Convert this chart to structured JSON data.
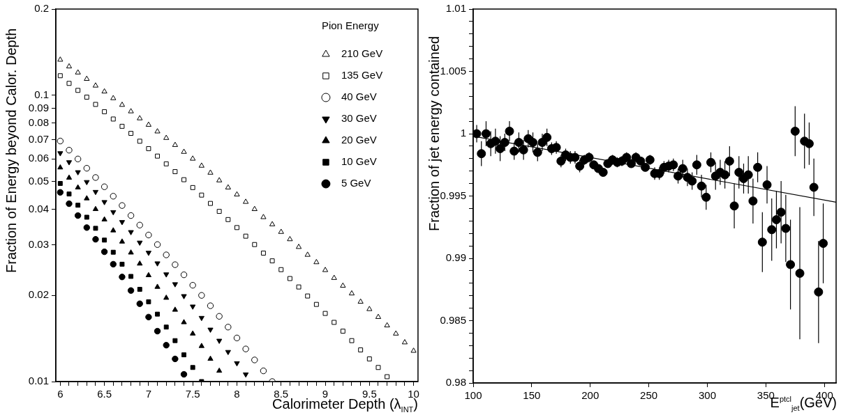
{
  "chart_data": [
    {
      "type": "scatter",
      "xlabel": "Calorimeter Depth (λ$_{INT}$)",
      "ylabel": "Fraction of Energy beyond Calor. Depth",
      "legend_title": "Pion Energy",
      "legend": "top right",
      "log": "y",
      "xlim": [
        5.95,
        10.05
      ],
      "ylim": [
        0.01,
        0.2
      ],
      "xticks": [
        6,
        {
          "value": 6.1,
          "label": null
        },
        {
          "value": 6.2,
          "label": null
        },
        {
          "value": 6.3,
          "label": null
        },
        {
          "value": 6.4,
          "label": null
        },
        6.5,
        {
          "value": 6.6,
          "label": null
        },
        {
          "value": 6.7,
          "label": null
        },
        {
          "value": 6.8,
          "label": null
        },
        {
          "value": 6.9,
          "label": null
        },
        7,
        {
          "value": 7.1,
          "label": null
        },
        {
          "value": 7.2,
          "label": null
        },
        {
          "value": 7.3,
          "label": null
        },
        {
          "value": 7.4,
          "label": null
        },
        7.5,
        {
          "value": 7.6,
          "label": null
        },
        {
          "value": 7.7,
          "label": null
        },
        {
          "value": 7.8,
          "label": null
        },
        {
          "value": 7.9,
          "label": null
        },
        8,
        {
          "value": 8.1,
          "label": null
        },
        {
          "value": 8.2,
          "label": null
        },
        {
          "value": 8.3,
          "label": null
        },
        {
          "value": 8.4,
          "label": null
        },
        8.5,
        {
          "value": 8.6,
          "label": null
        },
        {
          "value": 8.7,
          "label": null
        },
        {
          "value": 8.8,
          "label": null
        },
        {
          "value": 8.9,
          "label": null
        },
        9,
        {
          "value": 9.1,
          "label": null
        },
        {
          "value": 9.2,
          "label": null
        },
        {
          "value": 9.3,
          "label": null
        },
        {
          "value": 9.4,
          "label": null
        },
        9.5,
        {
          "value": 9.6,
          "label": null
        },
        {
          "value": 9.7,
          "label": null
        },
        {
          "value": 9.8,
          "label": null
        },
        {
          "value": 9.9,
          "label": null
        },
        10
      ],
      "yticks": [
        0.01,
        0.02,
        0.03,
        0.04,
        0.05,
        0.06,
        0.07,
        0.08,
        0.09,
        0.1,
        0.2
      ],
      "series": [
        {
          "name": "210 GeV",
          "color": "#000000",
          "marker": "triangle-open",
          "x": [
            6,
            6.1,
            6.2,
            6.3,
            6.4,
            6.5,
            6.6,
            6.7,
            6.8,
            6.9,
            7,
            7.1,
            7.2,
            7.3,
            7.4,
            7.5,
            7.6,
            7.7,
            7.8,
            7.9,
            8,
            8.1,
            8.2,
            8.3,
            8.4,
            8.5,
            8.6,
            8.7,
            8.8,
            8.9,
            9,
            9.1,
            9.2,
            9.3,
            9.4,
            9.5,
            9.6,
            9.7,
            9.8,
            9.9,
            10
          ],
          "values": [
            0.133,
            0.126,
            0.12,
            0.114,
            0.108,
            0.103,
            0.0976,
            0.0925,
            0.0878,
            0.083,
            0.0788,
            0.0747,
            0.0709,
            0.067,
            0.0634,
            0.06,
            0.0567,
            0.0536,
            0.0504,
            0.0476,
            0.045,
            0.0424,
            0.04,
            0.0375,
            0.0354,
            0.0333,
            0.0314,
            0.0295,
            0.0277,
            0.0261,
            0.0245,
            0.023,
            0.0216,
            0.0203,
            0.019,
            0.0179,
            0.0168,
            0.0157,
            0.0147,
            0.0137,
            0.0128
          ]
        },
        {
          "name": "135 GeV",
          "color": "#000000",
          "marker": "square-open",
          "x": [
            6,
            6.1,
            6.2,
            6.3,
            6.4,
            6.5,
            6.6,
            6.7,
            6.8,
            6.9,
            7,
            7.1,
            7.2,
            7.3,
            7.4,
            7.5,
            7.6,
            7.7,
            7.8,
            7.9,
            8,
            8.1,
            8.2,
            8.3,
            8.4,
            8.5,
            8.6,
            8.7,
            8.8,
            8.9,
            9,
            9.1,
            9.2,
            9.3,
            9.4,
            9.5,
            9.6,
            9.7
          ],
          "values": [
            0.117,
            0.11,
            0.104,
            0.0985,
            0.0929,
            0.0876,
            0.0826,
            0.0779,
            0.0736,
            0.0691,
            0.0651,
            0.0613,
            0.0576,
            0.0541,
            0.0507,
            0.0476,
            0.0448,
            0.0419,
            0.0393,
            0.0368,
            0.0345,
            0.0322,
            0.0301,
            0.0281,
            0.0264,
            0.0246,
            0.0229,
            0.0214,
            0.0199,
            0.0186,
            0.0173,
            0.0161,
            0.015,
            0.0139,
            0.0129,
            0.012,
            0.0112,
            0.0104
          ]
        },
        {
          "name": "40 GeV",
          "color": "#000000",
          "marker": "circle-open",
          "x": [
            6,
            6.1,
            6.2,
            6.3,
            6.4,
            6.5,
            6.6,
            6.7,
            6.8,
            6.9,
            7,
            7.1,
            7.2,
            7.3,
            7.4,
            7.5,
            7.6,
            7.7,
            7.8,
            7.9,
            8,
            8.1,
            8.2,
            8.3,
            8.4
          ],
          "values": [
            0.0692,
            0.0643,
            0.0599,
            0.0556,
            0.0516,
            0.0479,
            0.0444,
            0.0412,
            0.038,
            0.0352,
            0.0325,
            0.0301,
            0.0277,
            0.0256,
            0.0236,
            0.0217,
            0.02,
            0.0184,
            0.0169,
            0.0155,
            0.0142,
            0.013,
            0.0119,
            0.0109,
            0.01
          ]
        },
        {
          "name": "30 GeV",
          "color": "#000000",
          "marker": "triangle-down",
          "x": [
            6,
            6.1,
            6.2,
            6.3,
            6.4,
            6.5,
            6.6,
            6.7,
            6.8,
            6.9,
            7,
            7.1,
            7.2,
            7.3,
            7.4,
            7.5,
            7.6,
            7.7,
            7.8,
            7.9,
            8,
            8.1
          ],
          "values": [
            0.0628,
            0.0584,
            0.0539,
            0.0498,
            0.046,
            0.0424,
            0.0391,
            0.0361,
            0.0333,
            0.0306,
            0.0282,
            0.0259,
            0.0237,
            0.0219,
            0.0199,
            0.0183,
            0.0167,
            0.0152,
            0.0139,
            0.0127,
            0.0116,
            0.0106
          ]
        },
        {
          "name": "20 GeV",
          "color": "#000000",
          "marker": "triangle",
          "x": [
            6,
            6.1,
            6.2,
            6.3,
            6.4,
            6.5,
            6.6,
            6.7,
            6.8,
            6.9,
            7,
            7.1,
            7.2,
            7.3,
            7.4,
            7.5,
            7.6,
            7.7,
            7.8
          ],
          "values": [
            0.0559,
            0.0515,
            0.0476,
            0.0436,
            0.04,
            0.0368,
            0.0337,
            0.0308,
            0.0282,
            0.0258,
            0.0235,
            0.0214,
            0.0196,
            0.0178,
            0.0161,
            0.0147,
            0.0133,
            0.012,
            0.0109
          ]
        },
        {
          "name": "10 GeV",
          "color": "#000000",
          "marker": "square",
          "x": [
            6,
            6.1,
            6.2,
            6.3,
            6.4,
            6.5,
            6.6,
            6.7,
            6.8,
            6.9,
            7,
            7.1,
            7.2,
            7.3,
            7.4,
            7.5,
            7.6
          ],
          "values": [
            0.0492,
            0.0452,
            0.0413,
            0.0375,
            0.0343,
            0.0312,
            0.0283,
            0.0257,
            0.0233,
            0.021,
            0.019,
            0.0172,
            0.0155,
            0.0139,
            0.0124,
            0.0112,
            0.01
          ]
        },
        {
          "name": "5 GeV",
          "color": "#000000",
          "marker": "circle",
          "x": [
            6,
            6.1,
            6.2,
            6.3,
            6.4,
            6.5,
            6.6,
            6.7,
            6.8,
            6.9,
            7,
            7.1,
            7.2,
            7.3,
            7.4
          ],
          "values": [
            0.0458,
            0.0418,
            0.038,
            0.0345,
            0.0314,
            0.0284,
            0.0257,
            0.0232,
            0.0208,
            0.0187,
            0.0168,
            0.015,
            0.0134,
            0.012,
            0.0106
          ]
        }
      ]
    },
    {
      "type": "scatter",
      "xlabel": "E$^{ptcl}$$_{jet}$(GeV)",
      "ylabel": "Fraction of jet energy contained",
      "xlim": [
        100,
        410
      ],
      "ylim": [
        0.98,
        1.01
      ],
      "xticks": [
        100,
        150,
        200,
        250,
        300,
        350,
        400
      ],
      "yticks": [
        0.98,
        {
          "value": 0.981,
          "label": null
        },
        {
          "value": 0.982,
          "label": null
        },
        {
          "value": 0.983,
          "label": null
        },
        {
          "value": 0.984,
          "label": null
        },
        0.985,
        {
          "value": 0.986,
          "label": null
        },
        {
          "value": 0.987,
          "label": null
        },
        {
          "value": 0.988,
          "label": null
        },
        {
          "value": 0.989,
          "label": null
        },
        0.99,
        {
          "value": 0.991,
          "label": null
        },
        {
          "value": 0.992,
          "label": null
        },
        {
          "value": 0.993,
          "label": null
        },
        {
          "value": 0.994,
          "label": null
        },
        0.995,
        {
          "value": 0.996,
          "label": null
        },
        {
          "value": 0.997,
          "label": null
        },
        {
          "value": 0.998,
          "label": null
        },
        {
          "value": 0.999,
          "label": null
        },
        1,
        {
          "value": 1.001,
          "label": null
        },
        {
          "value": 1.002,
          "label": null
        },
        {
          "value": 1.003,
          "label": null
        },
        {
          "value": 1.004,
          "label": null
        },
        1.005,
        {
          "value": 1.006,
          "label": null
        },
        {
          "value": 1.007,
          "label": null
        },
        {
          "value": 1.008,
          "label": null
        },
        {
          "value": 1.009,
          "label": null
        },
        1.01
      ],
      "series": [
        {
          "color": "#000000",
          "marker": "circle",
          "x": [
            103,
            107,
            111,
            115,
            119,
            123,
            127,
            131,
            135,
            139,
            143,
            147,
            151,
            155,
            159,
            163,
            167,
            171,
            175,
            179,
            183,
            187,
            191,
            195,
            199,
            203,
            207,
            211,
            215,
            219,
            223,
            227,
            231,
            235,
            239,
            243,
            247,
            251,
            255,
            259,
            263,
            267,
            271,
            275,
            279,
            283,
            287,
            291,
            295,
            299,
            303,
            307,
            311,
            315,
            319,
            323,
            327,
            331,
            335,
            339,
            343,
            347,
            351,
            355,
            359,
            363,
            367,
            371,
            375,
            379,
            383,
            387,
            391,
            395,
            399
          ],
          "values": [
            1.0,
            0.9984,
            1.0,
            0.9992,
            0.9994,
            0.9988,
            0.9993,
            1.0002,
            0.9986,
            0.9993,
            0.9987,
            0.9996,
            0.9993,
            0.9985,
            0.9993,
            0.9997,
            0.9988,
            0.9989,
            0.9978,
            0.9983,
            0.9981,
            0.9981,
            0.9974,
            0.9979,
            0.9981,
            0.9975,
            0.9972,
            0.9969,
            0.9976,
            0.9979,
            0.9977,
            0.9978,
            0.9981,
            0.9976,
            0.9981,
            0.9978,
            0.9973,
            0.9979,
            0.9968,
            0.9968,
            0.9973,
            0.9974,
            0.9975,
            0.9966,
            0.9972,
            0.9965,
            0.9962,
            0.9975,
            0.9958,
            0.9949,
            0.9977,
            0.9966,
            0.9969,
            0.9967,
            0.9978,
            0.9942,
            0.9969,
            0.9964,
            0.9967,
            0.9946,
            0.9973,
            0.9913,
            0.9959,
            0.9923,
            0.9931,
            0.9937,
            0.9924,
            0.9895,
            1.0002,
            0.9888,
            0.9994,
            0.9992,
            0.9957,
            0.9873,
            0.9912
          ],
          "errors": [
            0.0007,
            0.001,
            0.001,
            0.001,
            0.001,
            0.001,
            0.0007,
            0.0008,
            0.0007,
            0.0008,
            0.0008,
            0.0007,
            0.0008,
            0.0007,
            0.0007,
            0.0007,
            0.0005,
            0.0005,
            0.0005,
            0.0005,
            0.0005,
            0.0005,
            0.0005,
            0.0004,
            0.0004,
            0.0003,
            0.0003,
            0.0003,
            0.0003,
            0.0004,
            0.0004,
            0.0004,
            0.0004,
            0.0003,
            0.0004,
            0.0003,
            0.0003,
            0.0004,
            0.0005,
            0.0005,
            0.0005,
            0.0005,
            0.0005,
            0.0006,
            0.0007,
            0.0007,
            0.0007,
            0.0008,
            0.0009,
            0.001,
            0.0008,
            0.0011,
            0.001,
            0.0011,
            0.0012,
            0.0018,
            0.0013,
            0.0012,
            0.0015,
            0.0018,
            0.0012,
            0.0024,
            0.0015,
            0.0025,
            0.0023,
            0.0025,
            0.0027,
            0.0036,
            0.002,
            0.0053,
            0.0022,
            0.0017,
            0.0023,
            0.0041,
            0.0032
          ]
        },
        {
          "type": "line",
          "color": "#000000",
          "marker": "none",
          "x": [
            100,
            410
          ],
          "values": [
            0.9998,
            0.9945
          ]
        }
      ]
    }
  ]
}
